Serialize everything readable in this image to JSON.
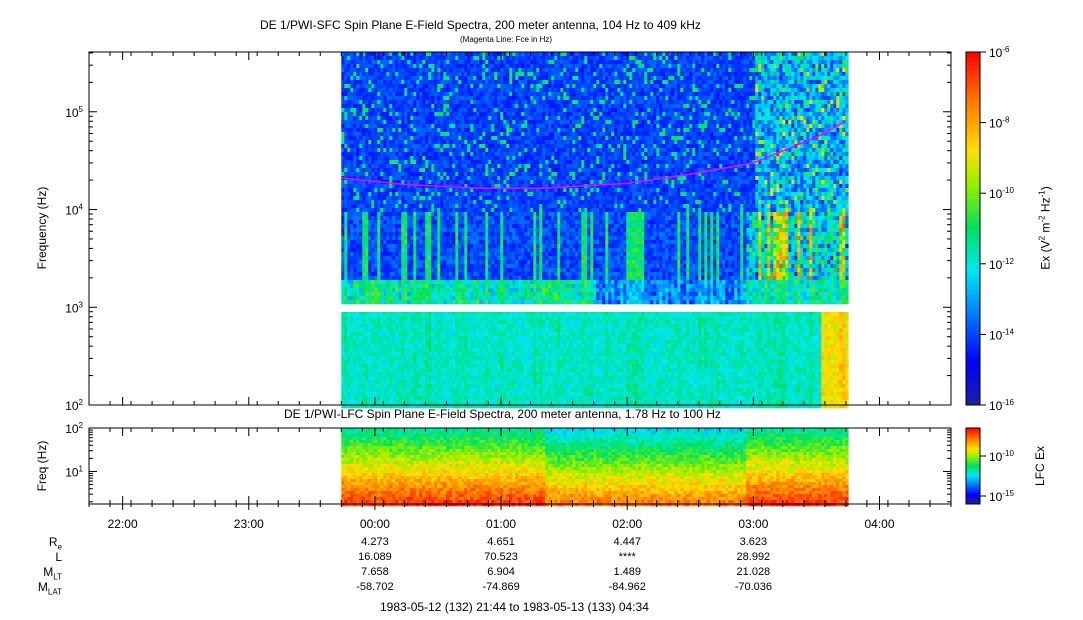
{
  "chart_data": [
    {
      "type": "heatmap",
      "title": "DE 1/PWI-SFC  Spin Plane E-Field Spectra, 200 meter antenna, 104 Hz to 409 kHz",
      "subtitle": "(Magenta Line: Fce in Hz)",
      "ylabel": "Frequency (Hz)",
      "yscale": "log",
      "ylim": [
        100,
        409000
      ],
      "yticks": [
        {
          "base": "10",
          "exp": "2"
        },
        {
          "base": "10",
          "exp": "3"
        },
        {
          "base": "10",
          "exp": "4"
        },
        {
          "base": "10",
          "exp": "5"
        }
      ],
      "data_gap_hz": [
        900,
        1050
      ],
      "colorbar": {
        "label": "Ex (V² m⁻² Hz⁻¹)",
        "label_parts": [
          "Ex (V",
          "2",
          " m",
          "-2",
          " Hz",
          "-1",
          ")"
        ],
        "scale": "log",
        "range": [
          1e-16,
          1e-06
        ],
        "ticks": [
          {
            "base": "10",
            "exp": "-6"
          },
          {
            "base": "10",
            "exp": "-8"
          },
          {
            "base": "10",
            "exp": "-10"
          },
          {
            "base": "10",
            "exp": "-12"
          },
          {
            "base": "10",
            "exp": "-14"
          },
          {
            "base": "10",
            "exp": "-16"
          }
        ]
      },
      "fce_line": {
        "color": "#ff00ff",
        "x": [
          "23:44",
          "00:15",
          "00:50",
          "01:20",
          "02:00",
          "02:30",
          "03:00",
          "03:30",
          "03:44"
        ],
        "y": [
          21000,
          18000,
          16500,
          16500,
          18500,
          23000,
          30000,
          55000,
          80000
        ]
      }
    },
    {
      "type": "heatmap",
      "title": "DE 1/PWI-LFC  Spin Plane E-Field Spectra, 200 meter antenna, 1.78 Hz to 100 Hz",
      "ylabel": "Freq (Hz)",
      "yscale": "log",
      "ylim": [
        1.78,
        100
      ],
      "yticks": [
        {
          "base": "10",
          "exp": "1"
        },
        {
          "base": "10",
          "exp": "2"
        }
      ],
      "colorbar": {
        "label": "LFC Ex",
        "scale": "log",
        "ticks": [
          {
            "base": "10",
            "exp": "-10"
          },
          {
            "base": "10",
            "exp": "-15"
          }
        ]
      }
    }
  ],
  "time_axis": {
    "range": [
      "21:44",
      "04:34"
    ],
    "data_range": [
      "23:44",
      "03:44"
    ],
    "ticks": [
      "22:00",
      "23:00",
      "00:00",
      "01:00",
      "02:00",
      "03:00",
      "04:00"
    ]
  },
  "ephemeris": {
    "rows": [
      {
        "label": "R",
        "sub": "e",
        "values": [
          "4.273",
          "4.651",
          "4.447",
          "3.623"
        ]
      },
      {
        "label": "L",
        "sub": "",
        "values": [
          "16.089",
          "70.523",
          "****",
          "28.992"
        ]
      },
      {
        "label": "M",
        "sub": "LT",
        "values": [
          "7.658",
          "6.904",
          "1.489",
          "21.028"
        ]
      },
      {
        "label": "M",
        "sub": "LAT",
        "values": [
          "-58.702",
          "-74.869",
          "-84.962",
          "-70.036"
        ]
      }
    ],
    "value_times": [
      "00:00",
      "01:00",
      "02:00",
      "03:00"
    ]
  },
  "footer": "1983-05-12 (132) 21:44 to 1983-05-13 (133) 04:34"
}
